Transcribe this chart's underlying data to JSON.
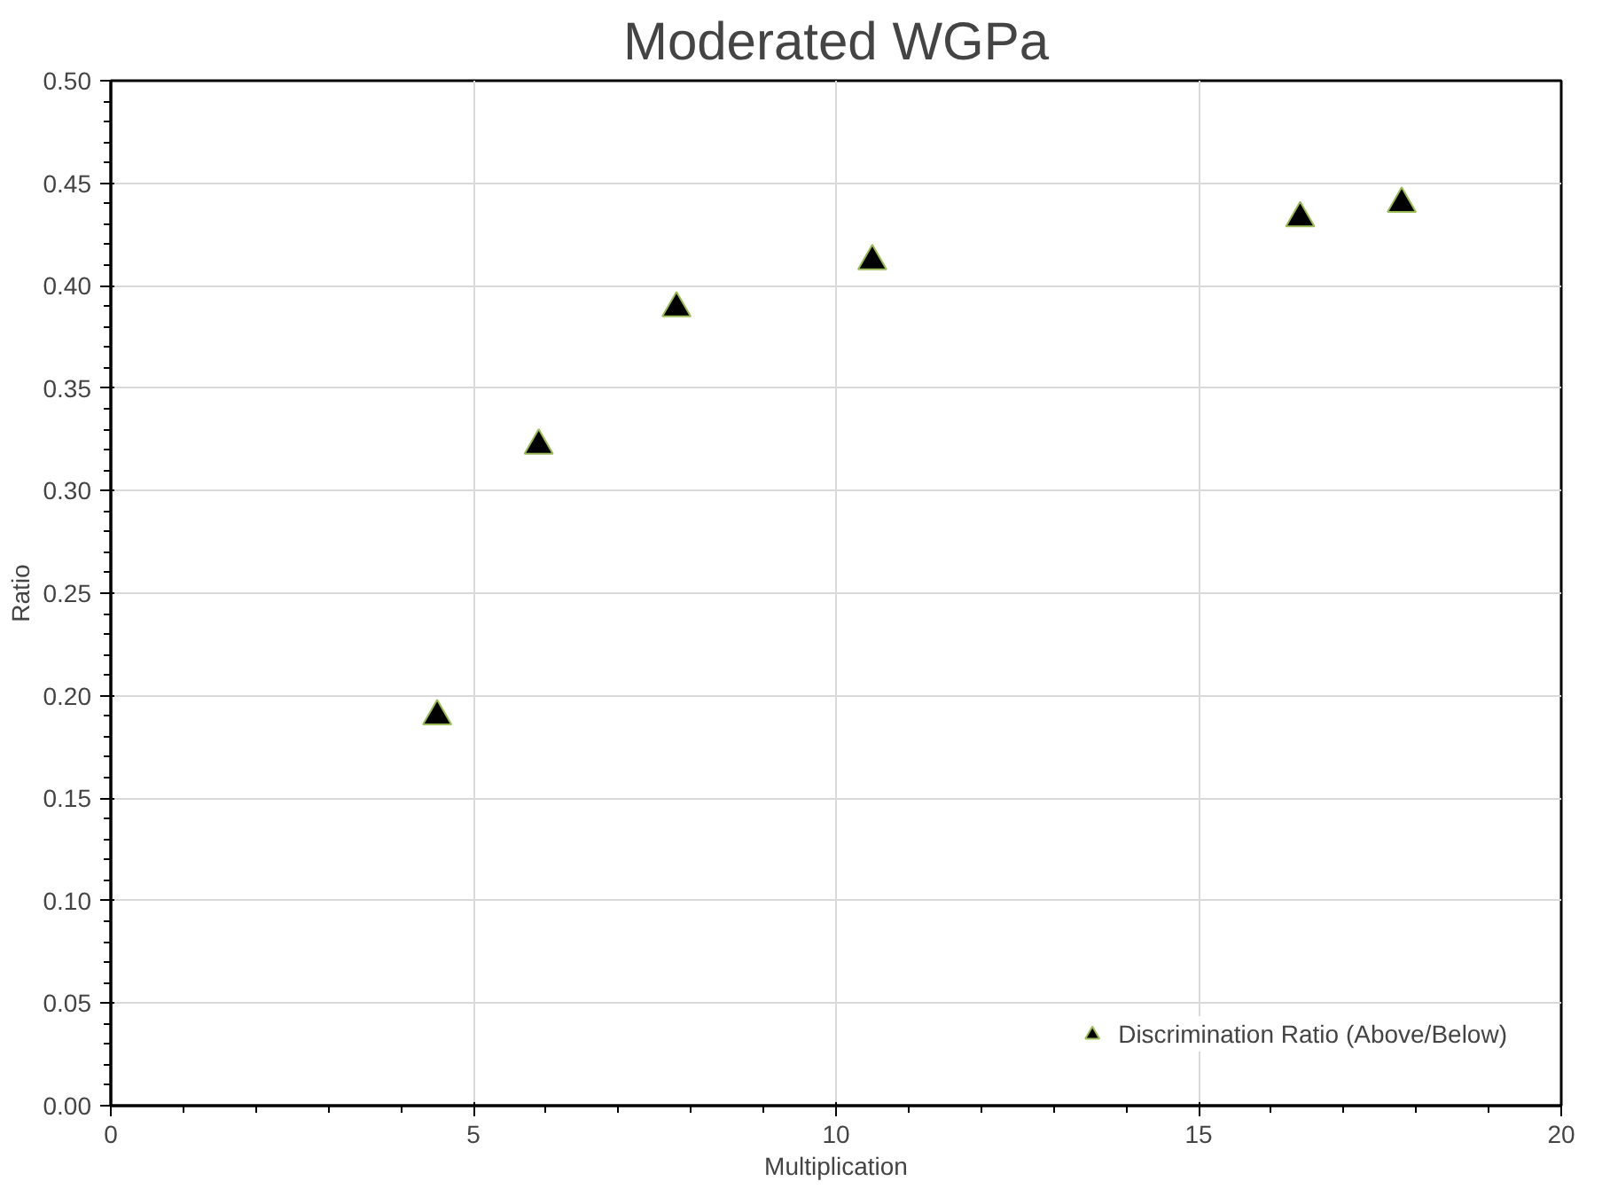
{
  "chart_data": {
    "type": "scatter",
    "title": "Moderated WGPa",
    "xlabel": "Multiplication",
    "ylabel": "Ratio",
    "xlim": [
      0,
      20
    ],
    "xticks": [
      0,
      5,
      10,
      15,
      20
    ],
    "ylim": [
      0,
      0.5
    ],
    "yticks": [
      {
        "value": 0,
        "label": "0.00"
      },
      {
        "value": 0.05,
        "label": "0.05"
      },
      {
        "value": 0.1,
        "label": "0.10"
      },
      {
        "value": 0.15,
        "label": "0.15"
      },
      {
        "value": 0.2,
        "label": "0.20"
      },
      {
        "value": 0.25,
        "label": "0.25"
      },
      {
        "value": 0.3,
        "label": "0.30"
      },
      {
        "value": 0.35,
        "label": "0.35"
      },
      {
        "value": 0.4,
        "label": "0.40"
      },
      {
        "value": 0.45,
        "label": "0.45"
      },
      {
        "value": 0.5,
        "label": "0.50"
      }
    ],
    "grid": true,
    "legend": "bottom right",
    "marker": "triangle",
    "series": [
      {
        "name": "Discrimination Ratio (Above/Below)",
        "color": "#000000",
        "x": [
          4.5,
          5.9,
          7.8,
          10.5,
          16.4,
          17.8
        ],
        "values": [
          0.19,
          0.322,
          0.389,
          0.412,
          0.433,
          0.44
        ]
      }
    ]
  }
}
